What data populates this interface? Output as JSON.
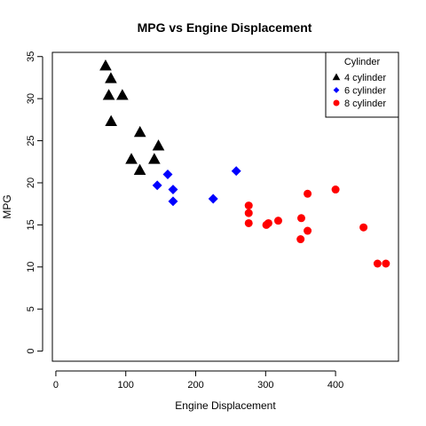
{
  "chart_data": {
    "type": "scatter",
    "title": "MPG vs Engine Displacement",
    "xlabel": "Engine Displacement",
    "ylabel": "MPG",
    "xlim": [
      -5,
      490
    ],
    "ylim": [
      -1.2,
      35.5
    ],
    "xticks": [
      0,
      100,
      200,
      300,
      400
    ],
    "yticks": [
      0,
      5,
      10,
      15,
      20,
      25,
      30,
      35
    ],
    "grid": false,
    "legend": {
      "title": "Cylinder",
      "placement": "top-right"
    },
    "series": [
      {
        "name": "4 cylinder",
        "marker": "triangle",
        "color": "#000000",
        "points": [
          [
            71.1,
            33.9
          ],
          [
            75.7,
            30.4
          ],
          [
            78.7,
            32.4
          ],
          [
            79.0,
            27.3
          ],
          [
            95.1,
            30.4
          ],
          [
            108.0,
            22.8
          ],
          [
            120.1,
            21.5
          ],
          [
            120.3,
            26.0
          ],
          [
            140.8,
            22.8
          ],
          [
            146.7,
            24.4
          ]
        ]
      },
      {
        "name": "6 cylinder",
        "marker": "diamond",
        "color": "#0000ff",
        "points": [
          [
            145.0,
            19.7
          ],
          [
            160.0,
            21.0
          ],
          [
            167.6,
            19.2
          ],
          [
            167.6,
            17.8
          ],
          [
            225.0,
            18.1
          ],
          [
            258.0,
            21.4
          ]
        ]
      },
      {
        "name": "8 cylinder",
        "marker": "circle",
        "color": "#ff0000",
        "points": [
          [
            275.8,
            16.4
          ],
          [
            275.8,
            17.3
          ],
          [
            275.8,
            15.2
          ],
          [
            301.0,
            15.0
          ],
          [
            304.0,
            15.2
          ],
          [
            318.0,
            15.5
          ],
          [
            350.0,
            13.3
          ],
          [
            351.0,
            15.8
          ],
          [
            360.0,
            18.7
          ],
          [
            360.0,
            14.3
          ],
          [
            400.0,
            19.2
          ],
          [
            440.0,
            14.7
          ],
          [
            460.0,
            10.4
          ],
          [
            472.0,
            10.4
          ]
        ]
      }
    ]
  }
}
